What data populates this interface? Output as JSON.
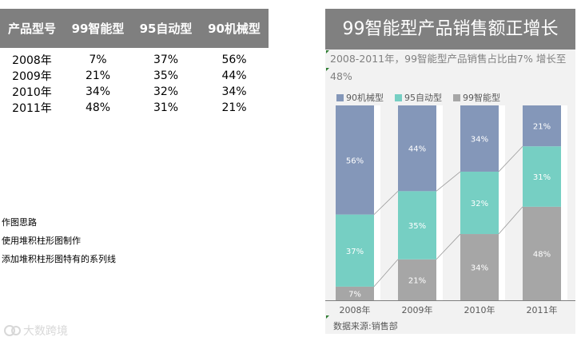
{
  "table": {
    "headers": [
      "产品型号",
      "99智能型",
      "95自动型",
      "90机械型"
    ],
    "rows": [
      [
        "2008年",
        "7%",
        "37%",
        "56%"
      ],
      [
        "2009年",
        "21%",
        "35%",
        "44%"
      ],
      [
        "2010年",
        "34%",
        "32%",
        "34%"
      ],
      [
        "2011年",
        "48%",
        "31%",
        "21%"
      ]
    ]
  },
  "notes": {
    "line1": "作图思路",
    "line2": "使用堆积柱形图制作",
    "line3": "添加堆积柱形图特有的系列线"
  },
  "watermark": "大数跨境",
  "chart_data": {
    "type": "bar",
    "stacked": true,
    "title": "99智能型产品销售额正增长",
    "subtitle": "2008-2011年，99智能型产品销售占比由7% 增长至48%",
    "categories": [
      "2008年",
      "2009年",
      "2010年",
      "2011年"
    ],
    "series": [
      {
        "name": "99智能型",
        "values": [
          7,
          21,
          34,
          48
        ],
        "labels": [
          "7%",
          "21%",
          "34%",
          "48%"
        ],
        "color": "#a6a6a6"
      },
      {
        "name": "95自动型",
        "values": [
          37,
          35,
          32,
          31
        ],
        "labels": [
          "37%",
          "35%",
          "32%",
          "31%"
        ],
        "color": "#76cfc3"
      },
      {
        "name": "90机械型",
        "values": [
          56,
          44,
          34,
          21
        ],
        "labels": [
          "56%",
          "44%",
          "34%",
          "21%"
        ],
        "color": "#8497b9"
      }
    ],
    "legend_order": [
      "90机械型",
      "95自动型",
      "99智能型"
    ],
    "series_lines": true,
    "ylim": [
      0,
      100
    ],
    "legend": "top-left",
    "source": "数据来源:销售部"
  }
}
